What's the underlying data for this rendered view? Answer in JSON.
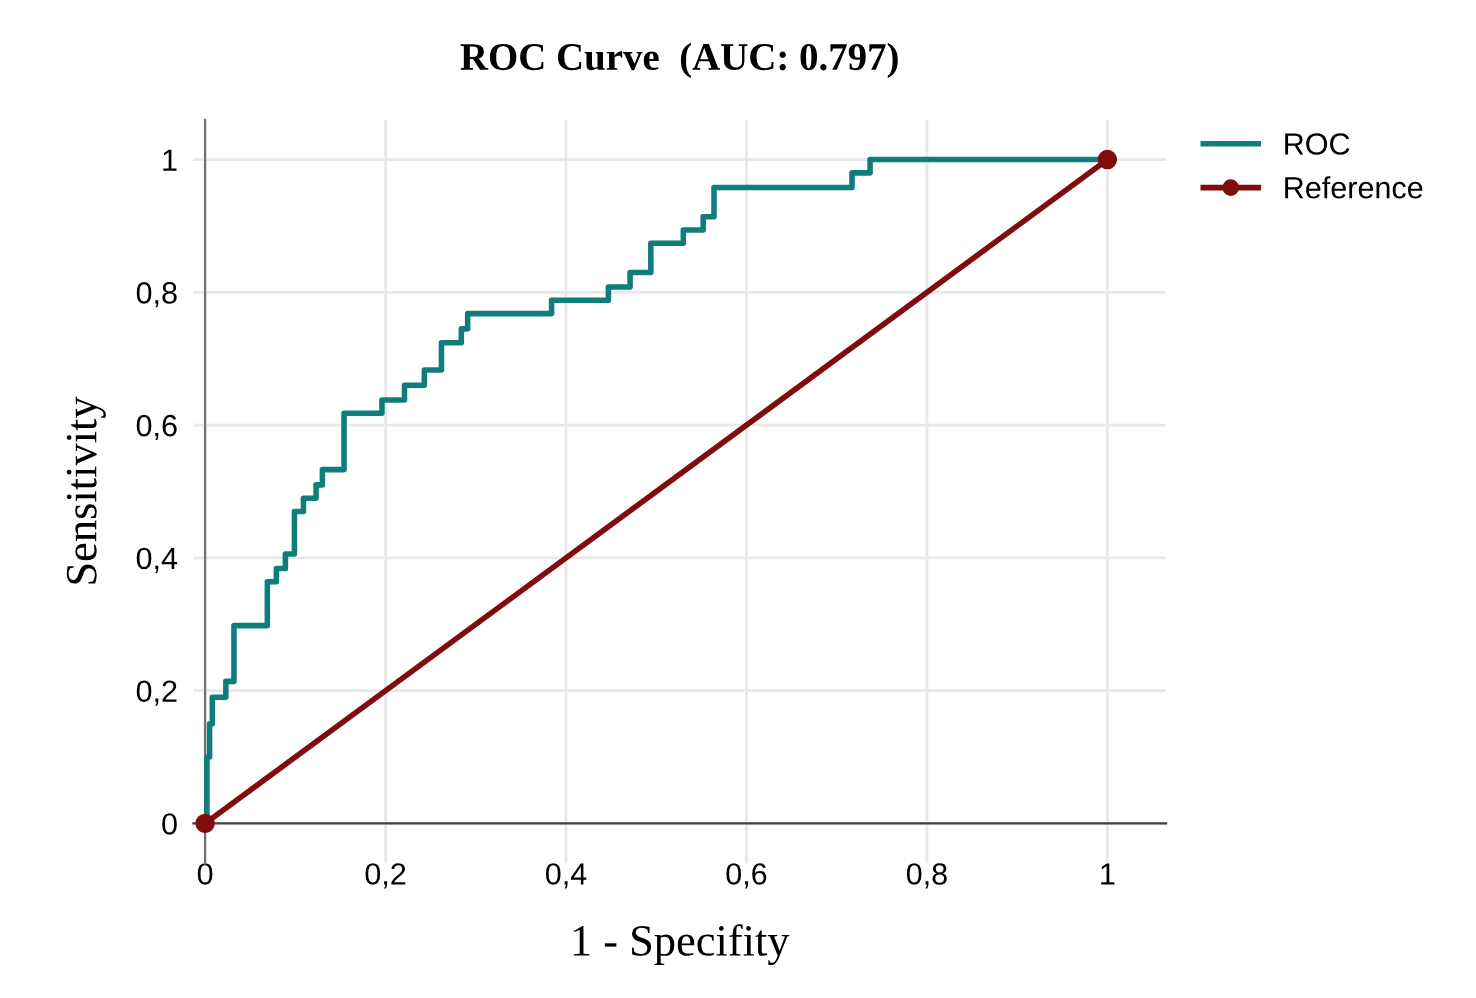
{
  "chart_data": {
    "type": "line",
    "title": "ROC Curve  (AUC: 0.797)",
    "xlabel": "1 - Specifity",
    "ylabel": "Sensitivity",
    "series": [
      {
        "name": "ROC",
        "color": "#0f7d7a",
        "marker": "none",
        "type": "step",
        "x": [
          0,
          0.002,
          0.005,
          0.008,
          0.023,
          0.032,
          0.069,
          0.079,
          0.089,
          0.099,
          0.109,
          0.123,
          0.13,
          0.154,
          0.196,
          0.221,
          0.243,
          0.262,
          0.284,
          0.291,
          0.384,
          0.447,
          0.471,
          0.494,
          0.53,
          0.552,
          0.564,
          0.717,
          0.737,
          1.0
        ],
        "values": [
          0,
          0.1,
          0.15,
          0.19,
          0.214,
          0.298,
          0.364,
          0.384,
          0.406,
          0.47,
          0.49,
          0.51,
          0.533,
          0.618,
          0.638,
          0.66,
          0.683,
          0.724,
          0.745,
          0.768,
          0.788,
          0.808,
          0.83,
          0.874,
          0.894,
          0.914,
          0.958,
          0.98,
          1.0,
          1.0
        ]
      },
      {
        "name": "Reference",
        "color": "#7f0d0d",
        "marker": "circle",
        "x": [
          0,
          1
        ],
        "values": [
          0,
          1
        ]
      }
    ],
    "xlim": [
      -0.013,
      1.065
    ],
    "ylim": [
      -0.06,
      1.06
    ],
    "xticks": [
      0,
      {
        "value": 0.2,
        "label": "0,2"
      },
      {
        "value": 0.4,
        "label": "0,4"
      },
      {
        "value": 0.6,
        "label": "0,6"
      },
      {
        "value": 0.8,
        "label": "0,8"
      },
      1
    ],
    "yticks": [
      0,
      {
        "value": 0.2,
        "label": "0,2"
      },
      {
        "value": 0.4,
        "label": "0,4"
      },
      {
        "value": 0.6,
        "label": "0,6"
      },
      {
        "value": 0.8,
        "label": "0,8"
      },
      1
    ],
    "grid": true,
    "legend": "top right"
  }
}
